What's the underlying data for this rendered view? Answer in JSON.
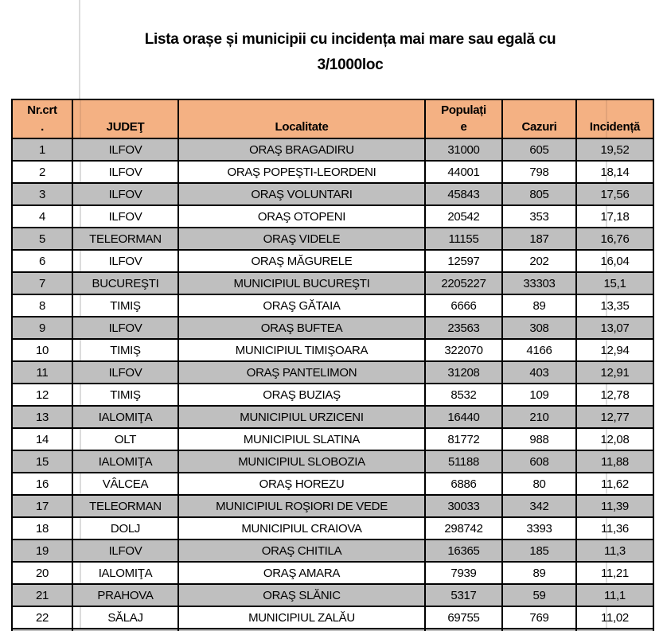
{
  "title": "Lista orașe și municipii cu incidența mai mare sau egală cu\n3/1000loc",
  "table": {
    "headers": [
      "Nr.crt\n.",
      "JUDEŢ",
      "Localitate",
      "Populați\ne",
      "Cazuri",
      "Incidență"
    ],
    "column_names": [
      "nr_crt",
      "judet",
      "localitate",
      "populatie",
      "cazuri",
      "incidenta"
    ],
    "rows": [
      [
        "1",
        "ILFOV",
        "ORAŞ BRAGADIRU",
        "31000",
        "605",
        "19,52"
      ],
      [
        "2",
        "ILFOV",
        "ORAŞ POPEŞTI-LEORDENI",
        "44001",
        "798",
        "18,14"
      ],
      [
        "3",
        "ILFOV",
        "ORAŞ VOLUNTARI",
        "45843",
        "805",
        "17,56"
      ],
      [
        "4",
        "ILFOV",
        "ORAŞ OTOPENI",
        "20542",
        "353",
        "17,18"
      ],
      [
        "5",
        "TELEORMAN",
        "ORAŞ VIDELE",
        "11155",
        "187",
        "16,76"
      ],
      [
        "6",
        "ILFOV",
        "ORAŞ MĂGURELE",
        "12597",
        "202",
        "16,04"
      ],
      [
        "7",
        "BUCUREŞTI",
        "MUNICIPIUL BUCUREŞTI",
        "2205227",
        "33303",
        "15,1"
      ],
      [
        "8",
        "TIMIŞ",
        "ORAŞ GĂTAIA",
        "6666",
        "89",
        "13,35"
      ],
      [
        "9",
        "ILFOV",
        "ORAŞ BUFTEA",
        "23563",
        "308",
        "13,07"
      ],
      [
        "10",
        "TIMIŞ",
        "MUNICIPIUL TIMIŞOARA",
        "322070",
        "4166",
        "12,94"
      ],
      [
        "11",
        "ILFOV",
        "ORAŞ PANTELIMON",
        "31208",
        "403",
        "12,91"
      ],
      [
        "12",
        "TIMIŞ",
        "ORAŞ BUZIAŞ",
        "8532",
        "109",
        "12,78"
      ],
      [
        "13",
        "IALOMIŢA",
        "MUNICIPIUL URZICENI",
        "16440",
        "210",
        "12,77"
      ],
      [
        "14",
        "OLT",
        "MUNICIPIUL SLATINA",
        "81772",
        "988",
        "12,08"
      ],
      [
        "15",
        "IALOMIŢA",
        "MUNICIPIUL SLOBOZIA",
        "51188",
        "608",
        "11,88"
      ],
      [
        "16",
        "VÂLCEA",
        "ORAŞ HOREZU",
        "6886",
        "80",
        "11,62"
      ],
      [
        "17",
        "TELEORMAN",
        "MUNICIPIUL ROŞIORI DE VEDE",
        "30033",
        "342",
        "11,39"
      ],
      [
        "18",
        "DOLJ",
        "MUNICIPIUL CRAIOVA",
        "298742",
        "3393",
        "11,36"
      ],
      [
        "19",
        "ILFOV",
        "ORAŞ CHITILA",
        "16365",
        "185",
        "11,3"
      ],
      [
        "20",
        "IALOMIŢA",
        "ORAŞ AMARA",
        "7939",
        "89",
        "11,21"
      ],
      [
        "21",
        "PRAHOVA",
        "ORAŞ SLĂNIC",
        "5317",
        "59",
        "11,1"
      ],
      [
        "22",
        "SĂLAJ",
        "MUNICIPIUL ZALĂU",
        "69755",
        "769",
        "11,02"
      ]
    ]
  },
  "colors": {
    "header_bg": "#F4B183",
    "row_gray": "#BFBFBF",
    "row_white": "#FFFFFF",
    "border": "#000000",
    "gridline": "#DCDCDC"
  }
}
